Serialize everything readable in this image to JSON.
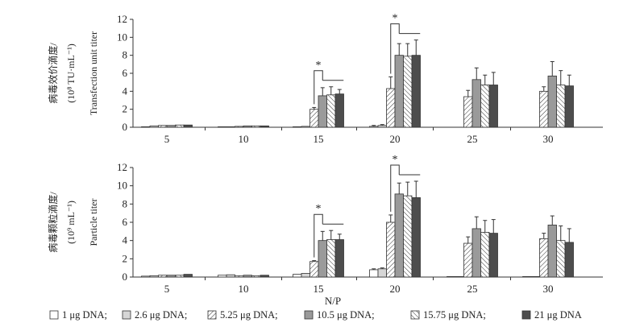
{
  "figure": {
    "xlabel": "N/P",
    "legend_separator": ";"
  },
  "chart_data": [
    {
      "type": "bar",
      "title": "",
      "ylabel_cn": "病毒效价滴度/",
      "ylabel_unit": "(10⁸ TU·mL⁻¹)",
      "ylabel_en": "Transfection unit titer",
      "xlabel": "N/P",
      "categories": [
        "5",
        "10",
        "15",
        "20",
        "25",
        "30"
      ],
      "ylim": [
        0,
        12
      ],
      "yticks": [
        "0",
        "2",
        "4",
        "6",
        "8",
        "10",
        "12"
      ],
      "series": [
        {
          "name": "1 μg DNA",
          "values": [
            0.05,
            0.05,
            0.05,
            0.1,
            null,
            null
          ],
          "errors": [
            0,
            0,
            0,
            0.1,
            0,
            0
          ]
        },
        {
          "name": "2.6 μg DNA",
          "values": [
            0.15,
            0.05,
            0.1,
            0.2,
            null,
            null
          ],
          "errors": [
            0,
            0,
            0,
            0.1,
            0,
            0
          ]
        },
        {
          "name": "5.25 μg DNA",
          "values": [
            0.2,
            0.1,
            2.0,
            4.3,
            3.4,
            4.0
          ],
          "errors": [
            0,
            0,
            0.2,
            1.3,
            0.7,
            0.5
          ]
        },
        {
          "name": "10.5 μg DNA",
          "values": [
            0.2,
            0.15,
            3.5,
            8.0,
            5.3,
            5.7
          ],
          "errors": [
            0,
            0,
            0.9,
            1.3,
            1.3,
            1.6
          ]
        },
        {
          "name": "15.75 μg DNA",
          "values": [
            0.25,
            0.15,
            3.6,
            7.9,
            4.7,
            4.7
          ],
          "errors": [
            0,
            0,
            0.9,
            1.4,
            1.1,
            1.6
          ]
        },
        {
          "name": "21 μg DNA",
          "values": [
            0.25,
            0.15,
            3.7,
            8.0,
            4.7,
            4.6
          ],
          "errors": [
            0,
            0,
            0.5,
            1.7,
            1.4,
            1.2
          ]
        }
      ],
      "annotations": [
        {
          "text": "*",
          "category": "15"
        },
        {
          "text": "*",
          "category": "20"
        }
      ]
    },
    {
      "type": "bar",
      "title": "",
      "ylabel_cn": "病毒颗粒滴度/",
      "ylabel_unit": "(10⁹ mL⁻¹)",
      "ylabel_en": "Particle titer",
      "xlabel": "N/P",
      "categories": [
        "5",
        "10",
        "15",
        "20",
        "25",
        "30"
      ],
      "ylim": [
        0,
        12
      ],
      "yticks": [
        "0",
        "2",
        "4",
        "6",
        "8",
        "10",
        "12"
      ],
      "series": [
        {
          "name": "1 μg DNA",
          "values": [
            0.1,
            0.2,
            0.3,
            0.8,
            0.05,
            0.05
          ],
          "errors": [
            0,
            0,
            0,
            0.1,
            0,
            0
          ]
        },
        {
          "name": "2.6 μg DNA",
          "values": [
            0.15,
            0.25,
            0.4,
            0.9,
            0.05,
            0.05
          ],
          "errors": [
            0,
            0,
            0,
            0.1,
            0,
            0
          ]
        },
        {
          "name": "5.25 μg DNA",
          "values": [
            0.2,
            0.15,
            1.7,
            6.0,
            3.7,
            4.2
          ],
          "errors": [
            0,
            0,
            0.1,
            0.8,
            0.7,
            0.6
          ]
        },
        {
          "name": "10.5 μg DNA",
          "values": [
            0.2,
            0.2,
            4.0,
            9.1,
            5.3,
            5.7
          ],
          "errors": [
            0,
            0,
            1.0,
            1.2,
            1.3,
            1.0
          ]
        },
        {
          "name": "15.75 μg DNA",
          "values": [
            0.2,
            0.15,
            4.1,
            8.9,
            4.9,
            4.0
          ],
          "errors": [
            0,
            0,
            1.0,
            1.5,
            1.3,
            1.6
          ]
        },
        {
          "name": "21 μg DNA",
          "values": [
            0.3,
            0.2,
            4.1,
            8.7,
            4.8,
            3.8
          ],
          "errors": [
            0,
            0,
            0.6,
            1.8,
            1.5,
            1.5
          ]
        }
      ],
      "annotations": [
        {
          "text": "*",
          "category": "15"
        },
        {
          "text": "*",
          "category": "20"
        }
      ]
    }
  ],
  "legend": [
    {
      "label": "1 μg DNA;",
      "fill": "#ffffff",
      "pattern": "none"
    },
    {
      "label": "2.6 μg DNA;",
      "fill": "#d6d6d6",
      "pattern": "none"
    },
    {
      "label": "5.25 μg DNA;",
      "fill": "#ffffff",
      "pattern": "hatch-right"
    },
    {
      "label": "10.5 μg DNA;",
      "fill": "#9a9a9a",
      "pattern": "none"
    },
    {
      "label": "15.75 μg DNA;",
      "fill": "#ffffff",
      "pattern": "hatch-left"
    },
    {
      "label": "21 μg DNA",
      "fill": "#4d4d4d",
      "pattern": "none"
    }
  ]
}
